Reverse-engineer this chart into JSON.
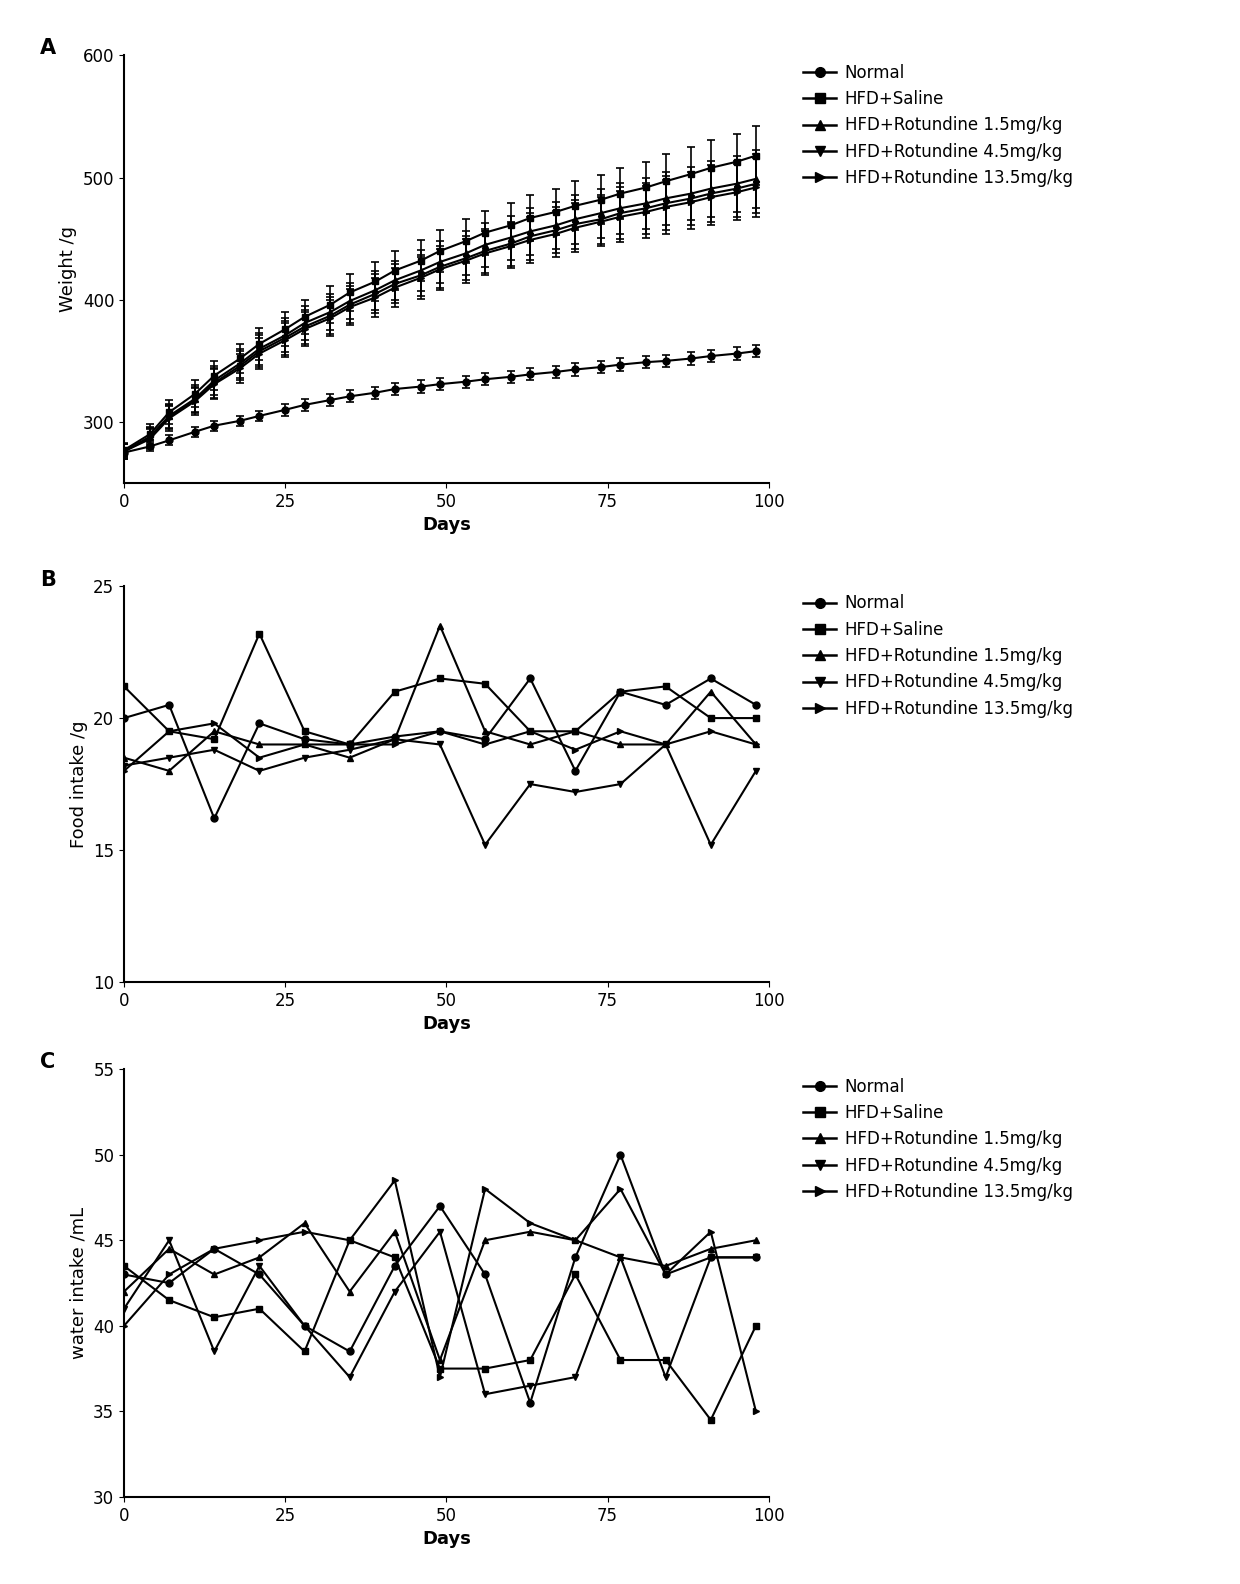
{
  "panel_A": {
    "title": "A",
    "ylabel": "Weight /g",
    "xlabel": "Days",
    "ylim": [
      250,
      600
    ],
    "xlim": [
      0,
      100
    ],
    "yticks": [
      300,
      400,
      500,
      600
    ],
    "xticks": [
      0,
      25,
      50,
      75,
      100
    ],
    "series": {
      "Normal": {
        "x": [
          0,
          4,
          7,
          11,
          14,
          18,
          21,
          25,
          28,
          32,
          35,
          39,
          42,
          46,
          49,
          53,
          56,
          60,
          63,
          67,
          70,
          74,
          77,
          81,
          84,
          88,
          91,
          95,
          98
        ],
        "y": [
          275,
          280,
          285,
          292,
          297,
          301,
          305,
          310,
          314,
          318,
          321,
          324,
          327,
          329,
          331,
          333,
          335,
          337,
          339,
          341,
          343,
          345,
          347,
          349,
          350,
          352,
          354,
          356,
          358
        ],
        "yerr": [
          4,
          4,
          4,
          4,
          4,
          4,
          4,
          5,
          5,
          5,
          5,
          5,
          5,
          5,
          5,
          5,
          5,
          5,
          5,
          5,
          5,
          5,
          5,
          5,
          5,
          5,
          5,
          5,
          5
        ],
        "marker": "o",
        "linestyle": "-"
      },
      "HFD+Saline": {
        "x": [
          0,
          4,
          7,
          11,
          14,
          18,
          21,
          25,
          28,
          32,
          35,
          39,
          42,
          46,
          49,
          53,
          56,
          60,
          63,
          67,
          70,
          74,
          77,
          81,
          84,
          88,
          91,
          95,
          98
        ],
        "y": [
          277,
          290,
          308,
          323,
          338,
          352,
          364,
          376,
          386,
          396,
          406,
          415,
          424,
          432,
          440,
          448,
          455,
          461,
          467,
          472,
          477,
          482,
          487,
          492,
          497,
          503,
          508,
          513,
          518
        ],
        "yerr": [
          6,
          8,
          10,
          11,
          12,
          12,
          13,
          14,
          14,
          15,
          15,
          16,
          16,
          17,
          17,
          18,
          18,
          18,
          19,
          19,
          20,
          20,
          21,
          21,
          22,
          22,
          23,
          23,
          24
        ],
        "marker": "s",
        "linestyle": "-"
      },
      "HFD+Rotundine 1.5mg/kg": {
        "x": [
          0,
          4,
          7,
          11,
          14,
          18,
          21,
          25,
          28,
          32,
          35,
          39,
          42,
          46,
          49,
          53,
          56,
          60,
          63,
          67,
          70,
          74,
          77,
          81,
          84,
          88,
          91,
          95,
          98
        ],
        "y": [
          276,
          288,
          305,
          319,
          334,
          348,
          360,
          371,
          381,
          390,
          399,
          408,
          416,
          424,
          431,
          438,
          445,
          451,
          456,
          461,
          466,
          471,
          475,
          479,
          483,
          487,
          491,
          495,
          499
        ],
        "yerr": [
          6,
          8,
          10,
          11,
          12,
          12,
          13,
          14,
          14,
          15,
          15,
          16,
          16,
          17,
          17,
          18,
          18,
          18,
          19,
          19,
          20,
          20,
          21,
          21,
          22,
          22,
          23,
          23,
          24
        ],
        "marker": "^",
        "linestyle": "-"
      },
      "HFD+Rotundine 4.5mg/kg": {
        "x": [
          0,
          4,
          7,
          11,
          14,
          18,
          21,
          25,
          28,
          32,
          35,
          39,
          42,
          46,
          49,
          53,
          56,
          60,
          63,
          67,
          70,
          74,
          77,
          81,
          84,
          88,
          91,
          95,
          98
        ],
        "y": [
          276,
          287,
          304,
          318,
          332,
          346,
          358,
          369,
          378,
          387,
          396,
          405,
          413,
          420,
          427,
          434,
          440,
          446,
          452,
          457,
          462,
          466,
          471,
          475,
          479,
          483,
          487,
          491,
          495
        ],
        "yerr": [
          6,
          8,
          10,
          11,
          12,
          12,
          13,
          14,
          14,
          15,
          15,
          16,
          16,
          17,
          17,
          18,
          18,
          18,
          19,
          19,
          20,
          20,
          21,
          21,
          22,
          22,
          23,
          23,
          24
        ],
        "marker": "v",
        "linestyle": "-"
      },
      "HFD+Rotundine 13.5mg/kg": {
        "x": [
          0,
          4,
          7,
          11,
          14,
          18,
          21,
          25,
          28,
          32,
          35,
          39,
          42,
          46,
          49,
          53,
          56,
          60,
          63,
          67,
          70,
          74,
          77,
          81,
          84,
          88,
          91,
          95,
          98
        ],
        "y": [
          276,
          286,
          303,
          317,
          331,
          344,
          356,
          367,
          376,
          385,
          394,
          402,
          410,
          418,
          425,
          432,
          438,
          444,
          449,
          454,
          459,
          464,
          468,
          472,
          476,
          480,
          484,
          488,
          492
        ],
        "yerr": [
          6,
          8,
          10,
          11,
          12,
          12,
          13,
          14,
          14,
          15,
          15,
          16,
          16,
          17,
          17,
          18,
          18,
          18,
          19,
          19,
          20,
          20,
          21,
          21,
          22,
          22,
          23,
          23,
          24
        ],
        "marker": ">",
        "linestyle": "-"
      }
    }
  },
  "panel_B": {
    "title": "B",
    "ylabel": "Food intake /g",
    "xlabel": "Days",
    "ylim": [
      10,
      25
    ],
    "xlim": [
      0,
      100
    ],
    "yticks": [
      10,
      15,
      20,
      25
    ],
    "xticks": [
      0,
      25,
      50,
      75,
      100
    ],
    "series": {
      "Normal": {
        "x": [
          0,
          7,
          14,
          21,
          28,
          35,
          42,
          49,
          56,
          63,
          70,
          77,
          84,
          91,
          98
        ],
        "y": [
          20.0,
          20.5,
          16.2,
          19.8,
          19.2,
          19.0,
          19.3,
          19.5,
          19.2,
          21.5,
          18.0,
          21.0,
          20.5,
          21.5,
          20.5
        ],
        "marker": "o",
        "linestyle": "-"
      },
      "HFD+Saline": {
        "x": [
          0,
          7,
          14,
          21,
          28,
          35,
          42,
          49,
          56,
          63,
          70,
          77,
          84,
          91,
          98
        ],
        "y": [
          21.2,
          19.5,
          19.2,
          23.2,
          19.5,
          19.0,
          21.0,
          21.5,
          21.3,
          19.5,
          19.5,
          21.0,
          21.2,
          20.0,
          20.0
        ],
        "marker": "s",
        "linestyle": "-"
      },
      "HFD+Rotundine 1.5mg/kg": {
        "x": [
          0,
          7,
          14,
          21,
          28,
          35,
          42,
          49,
          56,
          63,
          70,
          77,
          84,
          91,
          98
        ],
        "y": [
          18.5,
          18.0,
          19.5,
          19.0,
          19.0,
          18.5,
          19.2,
          23.5,
          19.5,
          19.0,
          19.5,
          19.0,
          19.0,
          21.0,
          19.0
        ],
        "marker": "^",
        "linestyle": "-"
      },
      "HFD+Rotundine 4.5mg/kg": {
        "x": [
          0,
          7,
          14,
          21,
          28,
          35,
          42,
          49,
          56,
          63,
          70,
          77,
          84,
          91,
          98
        ],
        "y": [
          18.2,
          18.5,
          18.8,
          18.0,
          18.5,
          18.8,
          19.2,
          19.0,
          15.2,
          17.5,
          17.2,
          17.5,
          19.0,
          15.2,
          18.0
        ],
        "marker": "v",
        "linestyle": "-"
      },
      "HFD+Rotundine 13.5mg/kg": {
        "x": [
          0,
          7,
          14,
          21,
          28,
          35,
          42,
          49,
          56,
          63,
          70,
          77,
          84,
          91,
          98
        ],
        "y": [
          18.0,
          19.5,
          19.8,
          18.5,
          19.0,
          19.0,
          19.0,
          19.5,
          19.0,
          19.5,
          18.8,
          19.5,
          19.0,
          19.5,
          19.0
        ],
        "marker": ">",
        "linestyle": "-"
      }
    }
  },
  "panel_C": {
    "title": "C",
    "ylabel": "water intake /mL",
    "xlabel": "Days",
    "ylim": [
      30,
      55
    ],
    "xlim": [
      0,
      100
    ],
    "yticks": [
      30,
      35,
      40,
      45,
      50,
      55
    ],
    "xticks": [
      0,
      25,
      50,
      75,
      100
    ],
    "series": {
      "Normal": {
        "x": [
          0,
          7,
          14,
          21,
          28,
          35,
          42,
          49,
          56,
          63,
          70,
          77,
          84,
          91,
          98
        ],
        "y": [
          43.0,
          42.5,
          44.5,
          43.0,
          40.0,
          38.5,
          43.5,
          47.0,
          43.0,
          35.5,
          44.0,
          50.0,
          43.0,
          44.0,
          44.0
        ],
        "marker": "o",
        "linestyle": "-"
      },
      "HFD+Saline": {
        "x": [
          0,
          7,
          14,
          21,
          28,
          35,
          42,
          49,
          56,
          63,
          70,
          77,
          84,
          91,
          98
        ],
        "y": [
          43.5,
          41.5,
          40.5,
          41.0,
          38.5,
          45.0,
          44.0,
          37.5,
          37.5,
          38.0,
          43.0,
          38.0,
          38.0,
          34.5,
          40.0
        ],
        "marker": "s",
        "linestyle": "-"
      },
      "HFD+Rotundine 1.5mg/kg": {
        "x": [
          0,
          7,
          14,
          21,
          28,
          35,
          42,
          49,
          56,
          63,
          70,
          77,
          84,
          91,
          98
        ],
        "y": [
          42.0,
          44.5,
          43.0,
          44.0,
          46.0,
          42.0,
          45.5,
          38.0,
          45.0,
          45.5,
          45.0,
          44.0,
          43.5,
          44.5,
          45.0
        ],
        "marker": "^",
        "linestyle": "-"
      },
      "HFD+Rotundine 4.5mg/kg": {
        "x": [
          0,
          7,
          14,
          21,
          28,
          35,
          42,
          49,
          56,
          63,
          70,
          77,
          84,
          91,
          98
        ],
        "y": [
          41.0,
          45.0,
          38.5,
          43.5,
          40.0,
          37.0,
          42.0,
          45.5,
          36.0,
          36.5,
          37.0,
          44.0,
          37.0,
          44.0,
          44.0
        ],
        "marker": "v",
        "linestyle": "-"
      },
      "HFD+Rotundine 13.5mg/kg": {
        "x": [
          0,
          7,
          14,
          21,
          28,
          35,
          42,
          49,
          56,
          63,
          70,
          77,
          84,
          91,
          98
        ],
        "y": [
          40.0,
          43.0,
          44.5,
          45.0,
          45.5,
          45.0,
          48.5,
          37.0,
          48.0,
          46.0,
          45.0,
          48.0,
          43.0,
          45.5,
          35.0
        ],
        "marker": ">",
        "linestyle": "-"
      }
    }
  },
  "legend_labels": [
    "Normal",
    "HFD+Saline",
    "HFD+Rotundine 1.5mg/kg",
    "HFD+Rotundine 4.5mg/kg",
    "HFD+Rotundine 13.5mg/kg"
  ],
  "line_color": "#000000",
  "background_color": "#ffffff",
  "fontsize_label": 13,
  "fontsize_tick": 12,
  "fontsize_legend": 12,
  "fontsize_panel": 15,
  "marker_size_A": 5,
  "marker_size_BC": 5,
  "linewidth": 1.5
}
